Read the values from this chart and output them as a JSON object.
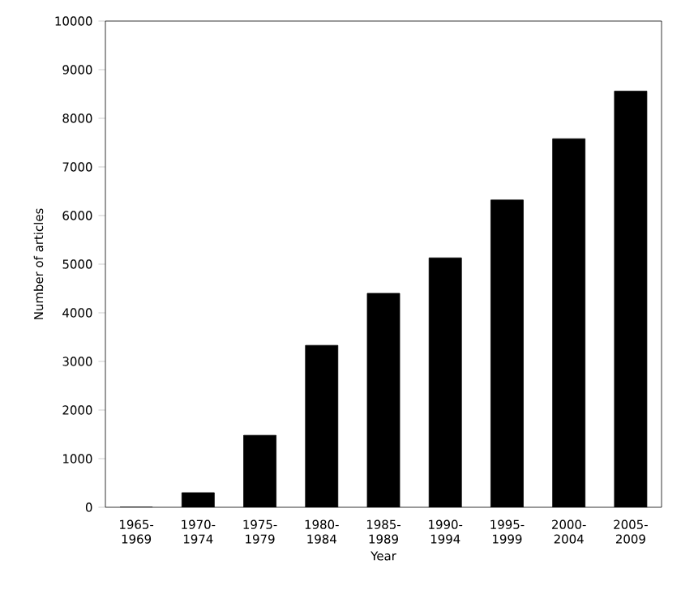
{
  "chart_data": {
    "type": "bar",
    "xlabel": "Year",
    "ylabel": "Number of articles",
    "categories": [
      "1965-1969",
      "1970-1974",
      "1975-1979",
      "1980-1984",
      "1985-1989",
      "1990-1994",
      "1995-1999",
      "2000-2004",
      "2005-2009"
    ],
    "values": [
      0,
      300,
      1480,
      3330,
      4400,
      5130,
      6320,
      7580,
      8560
    ],
    "color": "#000000",
    "ylim": [
      0,
      10000
    ],
    "yticks": [
      0,
      1000,
      2000,
      3000,
      4000,
      5000,
      6000,
      7000,
      8000,
      9000,
      10000
    ],
    "grid": false
  }
}
